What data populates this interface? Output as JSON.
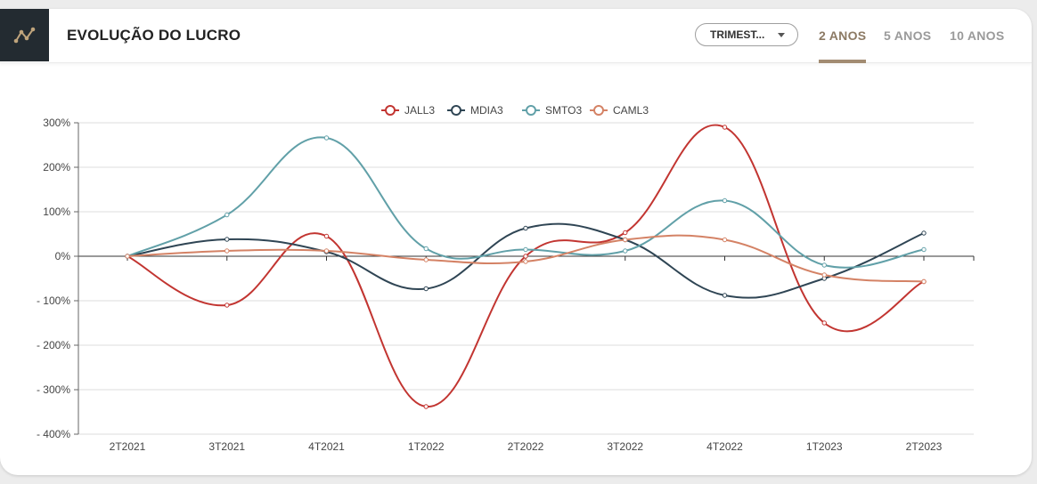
{
  "header": {
    "title": "EVOLUÇÃO DO LUCRO",
    "icon": "chart-line-icon",
    "period_select": "TRIMEST...",
    "tabs": [
      {
        "label": "2 ANOS",
        "active": true
      },
      {
        "label": "5 ANOS",
        "active": false
      },
      {
        "label": "10 ANOS",
        "active": false
      }
    ]
  },
  "chart_data": {
    "type": "line",
    "title": "",
    "xlabel": "",
    "ylabel": "",
    "categories": [
      "2T2021",
      "3T2021",
      "4T2021",
      "1T2022",
      "2T2022",
      "3T2022",
      "4T2022",
      "1T2023",
      "2T2023"
    ],
    "y_tick_labels": [
      "300%",
      "200%",
      "100%",
      "0%",
      "- 100%",
      "- 200%",
      "- 300%",
      "- 400%"
    ],
    "y_ticks": [
      300,
      200,
      100,
      0,
      -100,
      -200,
      -300,
      -400
    ],
    "ylim": [
      -400,
      300
    ],
    "grid": true,
    "legend_position": "top-center",
    "series": [
      {
        "name": "JALL3",
        "color": "#c23531",
        "values": [
          0,
          -110,
          45,
          -338,
          0,
          53,
          290,
          -150,
          -57
        ]
      },
      {
        "name": "MDIA3",
        "color": "#2f4554",
        "values": [
          0,
          38,
          10,
          -73,
          63,
          37,
          -88,
          -50,
          52
        ]
      },
      {
        "name": "SMTO3",
        "color": "#61a0a8",
        "values": [
          0,
          93,
          266,
          17,
          15,
          12,
          125,
          -20,
          15
        ]
      },
      {
        "name": "CAML3",
        "color": "#d48265",
        "values": [
          0,
          12,
          12,
          -8,
          -12,
          37,
          37,
          -42,
          -57
        ]
      }
    ]
  }
}
